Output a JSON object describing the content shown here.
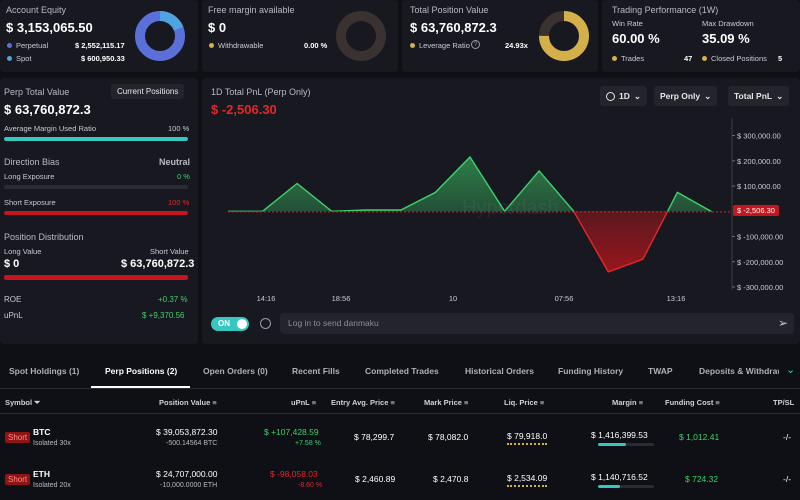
{
  "colors": {
    "green": "#3fd16b",
    "red": "#e5262b",
    "blue": "#5a6fd8",
    "gold": "#d4b04c",
    "teal": "#36c7c0",
    "bg": "#0f1015",
    "card": "#181920"
  },
  "account_equity": {
    "label": "Account Equity",
    "value": "$ 3,153,065.50",
    "perpetual_label": "Perpetual",
    "perpetual_value": "$ 2,552,115.17",
    "spot_label": "Spot",
    "spot_value": "$ 600,950.33"
  },
  "free_margin": {
    "label": "Free margin available",
    "value": "$ 0",
    "withdrawable_label": "Withdrawable",
    "withdrawable_value": "0.00 %"
  },
  "total_position": {
    "label": "Total Position Value",
    "value": "$ 63,760,872.3",
    "leverage_label": "Leverage Ratio",
    "leverage_value": "24.93x",
    "donut_fraction": 0.75
  },
  "trading_perf": {
    "label": "Trading Performance (1W)",
    "win_rate_label": "Win Rate",
    "win_rate_value": "60.00 %",
    "drawdown_label": "Max Drawdown",
    "drawdown_value": "35.09 %",
    "trades_label": "Trades",
    "trades_value": "47",
    "closed_label": "Closed Positions",
    "closed_value": "5"
  },
  "perp_panel": {
    "label": "Perp Total Value",
    "current_positions_btn": "Current Positions",
    "value": "$ 63,760,872.3",
    "avg_margin_label": "Average Margin Used Ratio",
    "avg_margin_value": "100 %",
    "avg_margin_fraction": 1.0,
    "direction_label": "Direction Bias",
    "direction_value": "Neutral",
    "long_exposure_label": "Long Exposure",
    "long_exposure_value": "0 %",
    "long_fraction": 0.0,
    "short_exposure_label": "Short Exposure",
    "short_exposure_value": "100 %",
    "short_fraction": 1.0,
    "distribution_label": "Position Distribution",
    "long_value_label": "Long Value",
    "short_value_label": "Short Value",
    "long_value": "$ 0",
    "short_value": "$ 63,760,872.3",
    "roe_label": "ROE",
    "roe_value": "+0.37 %",
    "upnl_label": "uPnL",
    "upnl_value": "$ +9,370.56"
  },
  "pnl_chart": {
    "title": "1D Total PnL (Perp Only)",
    "value": "$ -2,506.30",
    "btn_period": "1D",
    "btn_scope": "Perp Only",
    "btn_metric": "Total PnL",
    "toggle_label": "ON",
    "danmaku_placeholder": "Log in to send danmaku",
    "watermark": "Hyperdash",
    "current_label": "$ -2,506.30"
  },
  "chart_data": {
    "type": "area",
    "title": "1D Total PnL (Perp Only)",
    "x_ticks": [
      "14:16",
      "18:56",
      "10",
      "07:56",
      "13:16"
    ],
    "y_ticks": [
      "$ 300,000.00",
      "$ 200,000.00",
      "$ 100,000.00",
      "$ 0",
      "$ -100,000.00",
      "$ -200,000.00",
      "$ -300,000.00"
    ],
    "ylim": [
      -300000,
      330000
    ],
    "values": [
      0,
      0,
      110000,
      0,
      5000,
      5000,
      75000,
      215000,
      0,
      160000,
      0,
      -240000,
      -190000,
      75000,
      -2506.3
    ],
    "current": -2506.3
  },
  "tabs": [
    {
      "label": "Spot Holdings (1)",
      "active": false
    },
    {
      "label": "Perp Positions (2)",
      "active": true
    },
    {
      "label": "Open Orders (0)",
      "active": false
    },
    {
      "label": "Recent Fills",
      "active": false
    },
    {
      "label": "Completed Trades",
      "active": false
    },
    {
      "label": "Historical Orders",
      "active": false
    },
    {
      "label": "Funding History",
      "active": false
    },
    {
      "label": "TWAP",
      "active": false
    },
    {
      "label": "Deposits & Withdraw",
      "active": false
    }
  ],
  "table": {
    "headers": [
      "Symbol",
      "Position Value",
      "uPnL",
      "Entry Avg. Price",
      "Mark Price",
      "Liq. Price",
      "Margin",
      "Funding Cost",
      "TP/SL"
    ],
    "rows": [
      {
        "side": "Short",
        "symbol": "BTC",
        "margin_mode": "Isolated 30x",
        "position_value": "$ 39,053,872.30",
        "position_size": "-500.14564 BTC",
        "upnl": "$ +107,428.59",
        "upnl_pct": "+7.58 %",
        "entry": "$ 78,299.7",
        "mark": "$ 78,082.0",
        "liq": "$ 79,918.0",
        "margin": "$ 1,416,399.53",
        "margin_fraction": 0.5,
        "funding": "$ 1,012.41",
        "tpsl": "-/-",
        "positive": true
      },
      {
        "side": "Short",
        "symbol": "ETH",
        "margin_mode": "Isolated 20x",
        "position_value": "$ 24,707,000.00",
        "position_size": "-10,000.0000 ETH",
        "upnl": "$ -98,058.03",
        "upnl_pct": "-8.60 %",
        "entry": "$ 2,460.89",
        "mark": "$ 2,470.8",
        "liq": "$ 2,534.09",
        "margin": "$ 1,140,716.52",
        "margin_fraction": 0.4,
        "funding": "$ 724.32",
        "tpsl": "-/-",
        "positive": false
      }
    ]
  }
}
